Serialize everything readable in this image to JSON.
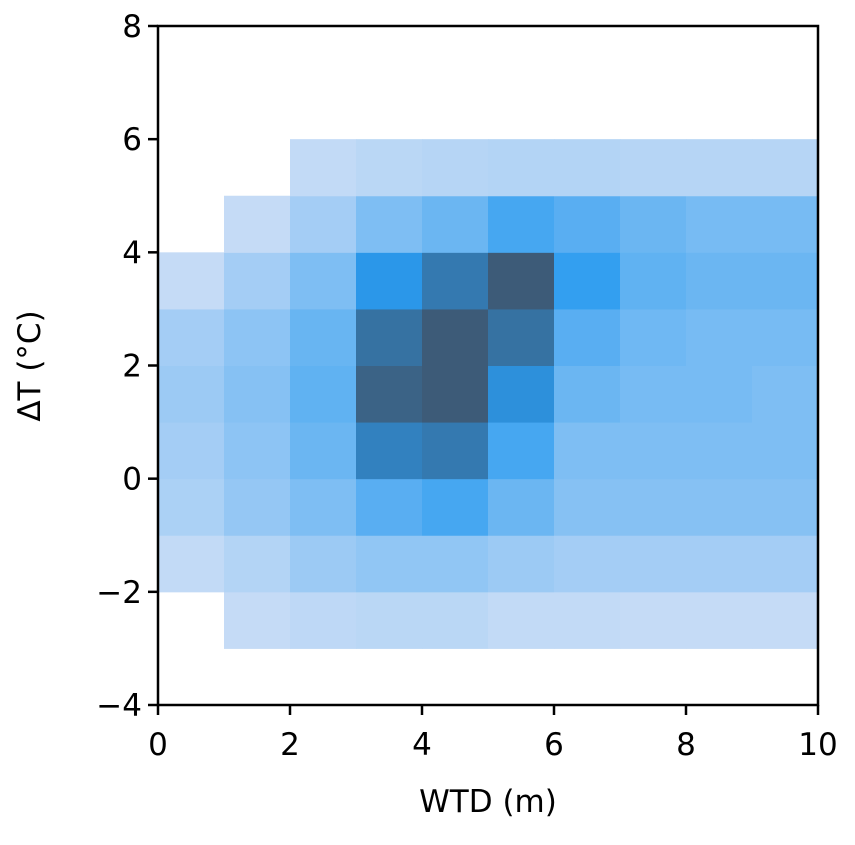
{
  "chart_data": {
    "type": "hist2d",
    "xlabel": "WTD (m)",
    "ylabel": "ΔT (°C)",
    "x_bins": [
      0,
      1,
      2,
      3,
      4,
      5,
      6,
      7,
      8,
      9,
      10
    ],
    "y_bins": [
      -4,
      -3,
      -2,
      -1,
      0,
      1,
      2,
      3,
      4,
      5,
      6,
      7,
      8
    ],
    "counts": [
      [
        0,
        0,
        2,
        8,
        10,
        12,
        10,
        1,
        0,
        0,
        0,
        0
      ],
      [
        0,
        1,
        6,
        14,
        16,
        18,
        16,
        10,
        1,
        0,
        0,
        0
      ],
      [
        0,
        3,
        12,
        20,
        25,
        28,
        26,
        20,
        10,
        2,
        0,
        0
      ],
      [
        0,
        4,
        15,
        30,
        60,
        80,
        70,
        45,
        20,
        4,
        0,
        0
      ],
      [
        0,
        4,
        15,
        35,
        65,
        85,
        85,
        65,
        25,
        5,
        0,
        0
      ],
      [
        0,
        2,
        12,
        25,
        35,
        50,
        70,
        85,
        35,
        6,
        0,
        0
      ],
      [
        0,
        2,
        10,
        18,
        20,
        25,
        30,
        40,
        30,
        6,
        0,
        0
      ],
      [
        0,
        1,
        10,
        18,
        20,
        22,
        24,
        28,
        25,
        5,
        0,
        0
      ],
      [
        0,
        1,
        10,
        18,
        20,
        22,
        22,
        25,
        22,
        5,
        0,
        0
      ],
      [
        0,
        1,
        10,
        18,
        20,
        20,
        22,
        25,
        22,
        5,
        0,
        0
      ]
    ],
    "colors": [
      "#c9ddf6",
      "#2a9bf0",
      "#3d5b78"
    ],
    "xlim": [
      0,
      10
    ],
    "ylim": [
      -4,
      8
    ],
    "xticks": [
      0,
      2,
      4,
      6,
      8,
      10
    ],
    "yticks": [
      {
        "value": -4,
        "label": "−4"
      },
      {
        "value": -2,
        "label": "−2"
      },
      0,
      2,
      4,
      6,
      8
    ]
  }
}
